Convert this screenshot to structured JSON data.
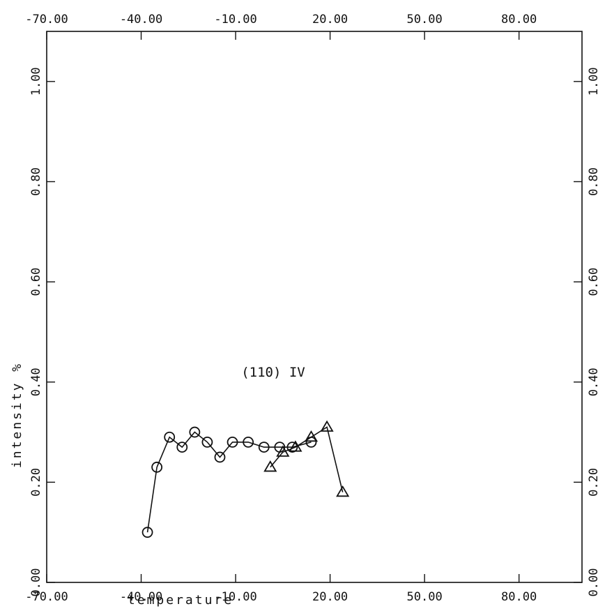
{
  "chart_data": {
    "type": "scatter",
    "title": "",
    "xlabel": "temperature",
    "ylabel": "intensity %",
    "xlim": [
      -70,
      100
    ],
    "ylim": [
      0,
      1.1
    ],
    "xticks": [
      -70,
      -40,
      -10,
      20,
      50,
      80
    ],
    "xtick_labels": [
      "-70.00",
      "-40.00",
      "-10.00",
      "20.00",
      "50.00",
      "80.00"
    ],
    "yticks": [
      0,
      0.2,
      0.4,
      0.6,
      0.8,
      1.0
    ],
    "ytick_labels": [
      "0.00",
      "0.20",
      "0.40",
      "0.60",
      "0.80",
      "1.00"
    ],
    "grid": false,
    "annotations": [
      {
        "text": "(110) IV",
        "x": -1,
        "y": 0.4
      }
    ],
    "series": [
      {
        "marker": "circle",
        "connected": true,
        "x": [
          -38,
          -35,
          -31,
          -27,
          -23,
          -19,
          -15,
          -11,
          -6,
          -1,
          4,
          8,
          14
        ],
        "y": [
          0.1,
          0.23,
          0.29,
          0.27,
          0.3,
          0.28,
          0.25,
          0.28,
          0.28,
          0.27,
          0.27,
          0.27,
          0.28
        ]
      },
      {
        "marker": "triangle",
        "connected": true,
        "x": [
          1,
          5,
          9,
          14,
          19,
          24
        ],
        "y": [
          0.23,
          0.26,
          0.27,
          0.29,
          0.31,
          0.18
        ]
      }
    ]
  }
}
